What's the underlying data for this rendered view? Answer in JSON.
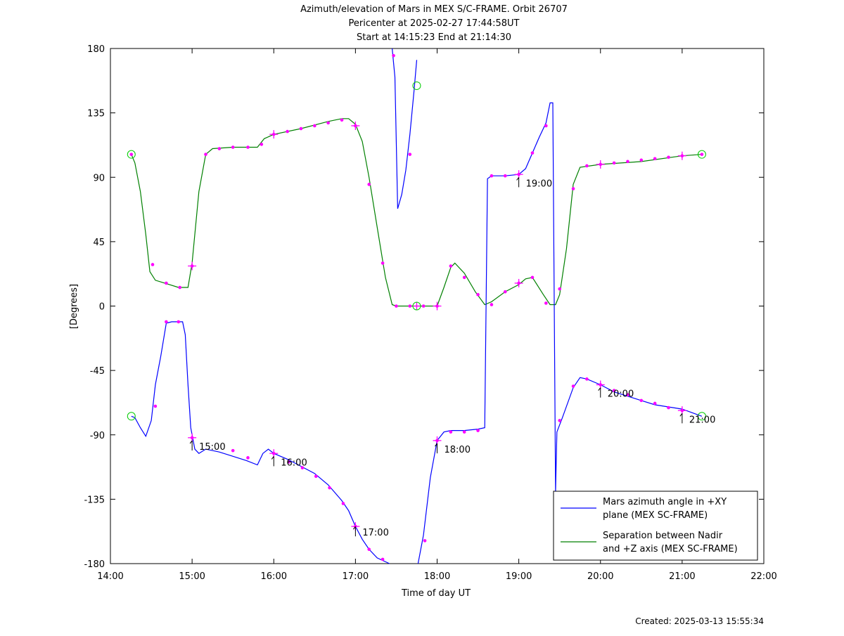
{
  "chart_data": {
    "type": "line",
    "title_lines": [
      "Azimuth/elevation of Mars in MEX S/C-FRAME.  Orbit 26707",
      "Pericenter at 2025-02-27 17:44:58UT",
      "Start at 14:15:23 End at 21:14:30"
    ],
    "xlabel": "Time of day UT",
    "ylabel": "[Degrees]",
    "footer": "Created: 2025-03-13 15:55:34",
    "xlim": [
      "14:00",
      "22:00"
    ],
    "ylim": [
      -180,
      180
    ],
    "x_ticks": [
      "14:00",
      "15:00",
      "16:00",
      "17:00",
      "18:00",
      "19:00",
      "20:00",
      "21:00",
      "22:00"
    ],
    "y_ticks": [
      180,
      135,
      90,
      45,
      0,
      -45,
      -90,
      -135,
      -180
    ],
    "grid": false,
    "legend_position": "bottom-right",
    "colors": {
      "azimuth": "#0000ff",
      "separation": "#008000",
      "marker": "#ff00ff",
      "endpoint": "#00cc00"
    },
    "series": [
      {
        "name": "Mars azimuth angle in +XY plane (MEX SC-FRAME)",
        "legend_lines": [
          "Mars azimuth angle in +XY",
          "plane (MEX SC-FRAME)"
        ],
        "color": "#0000ff",
        "points": [
          [
            "14:15:23",
            -77
          ],
          [
            "14:18",
            -78
          ],
          [
            "14:22",
            -85
          ],
          [
            "14:26",
            -91
          ],
          [
            "14:30",
            -80
          ],
          [
            "14:33",
            -55
          ],
          [
            "14:37",
            -35
          ],
          [
            "14:41",
            -12
          ],
          [
            "14:45",
            -11
          ],
          [
            "14:50",
            -11
          ],
          [
            "14:53",
            -11
          ],
          [
            "14:55",
            -20
          ],
          [
            "14:57",
            -55
          ],
          [
            "14:59",
            -85
          ],
          [
            "15:02",
            -100
          ],
          [
            "15:05",
            -103
          ],
          [
            "15:10",
            -100
          ],
          [
            "15:20",
            -102
          ],
          [
            "15:30",
            -105
          ],
          [
            "15:40",
            -108
          ],
          [
            "15:48",
            -111
          ],
          [
            "15:52",
            -103
          ],
          [
            "15:56",
            -100
          ],
          [
            "16:00",
            -103
          ],
          [
            "16:10",
            -107
          ],
          [
            "16:20",
            -112
          ],
          [
            "16:30",
            -117
          ],
          [
            "16:40",
            -125
          ],
          [
            "16:50",
            -136
          ],
          [
            "16:55",
            -143
          ],
          [
            "17:00",
            -154
          ],
          [
            "17:05",
            -163
          ],
          [
            "17:10",
            -170
          ],
          [
            "17:16",
            -176
          ],
          [
            "17:25",
            -180
          ],
          [
            null,
            null
          ],
          [
            "17:27",
            180
          ],
          [
            "17:29",
            160
          ],
          [
            "17:31",
            68
          ],
          [
            "17:34",
            78
          ],
          [
            "17:37",
            95
          ],
          [
            "17:40",
            120
          ],
          [
            "17:43",
            150
          ],
          [
            "17:45",
            172
          ],
          [
            null,
            null
          ],
          [
            "17:46",
            -180
          ],
          [
            "17:50",
            -160
          ],
          [
            "17:55",
            -120
          ],
          [
            "18:00",
            -94
          ],
          [
            "18:05",
            -88
          ],
          [
            "18:10",
            -87
          ],
          [
            "18:20",
            -87
          ],
          [
            "18:30",
            -86
          ],
          [
            "18:35",
            -85
          ],
          [
            "18:37",
            89
          ],
          [
            "18:40",
            91
          ],
          [
            "18:50",
            91
          ],
          [
            "19:00",
            92
          ],
          [
            "19:05",
            96
          ],
          [
            "19:10",
            107
          ],
          [
            "19:15",
            118
          ],
          [
            "19:20",
            128
          ],
          [
            "19:23",
            142
          ],
          [
            "19:25",
            142
          ],
          [
            "19:27",
            -130
          ],
          [
            "19:28",
            -88
          ],
          [
            "19:32",
            -78
          ],
          [
            "19:40",
            -57
          ],
          [
            "19:45",
            -50
          ],
          [
            "19:50",
            -51
          ],
          [
            "20:00",
            -55
          ],
          [
            "20:10",
            -60
          ],
          [
            "20:20",
            -63
          ],
          [
            "20:30",
            -66
          ],
          [
            "20:40",
            -69
          ],
          [
            "21:00",
            -72
          ],
          [
            "21:14:30",
            -77
          ]
        ],
        "markers": [
          [
            "14:33",
            -70
          ],
          [
            "14:41",
            -11
          ],
          [
            "14:50",
            -11
          ],
          [
            "15:00",
            -92
          ],
          [
            "15:30",
            -101
          ],
          [
            "15:41",
            -106
          ],
          [
            "16:00",
            -103
          ],
          [
            "16:11",
            -109
          ],
          [
            "16:21",
            -113
          ],
          [
            "16:31",
            -119
          ],
          [
            "16:41",
            -127
          ],
          [
            "16:51",
            -138
          ],
          [
            "17:00",
            -154
          ],
          [
            "17:10",
            -170
          ],
          [
            "17:20",
            -177
          ],
          [
            "17:28",
            175
          ],
          [
            "17:40",
            106
          ],
          [
            "17:51",
            -164
          ],
          [
            "18:00",
            -94
          ],
          [
            "18:10",
            -88
          ],
          [
            "18:20",
            -88
          ],
          [
            "18:30",
            -87
          ],
          [
            "18:40",
            91
          ],
          [
            "18:50",
            91
          ],
          [
            "19:00",
            92
          ],
          [
            "19:10",
            107
          ],
          [
            "19:20",
            126
          ],
          [
            "19:30",
            -80
          ],
          [
            "19:40",
            -56
          ],
          [
            "19:50",
            -51
          ],
          [
            "20:00",
            -55
          ],
          [
            "20:10",
            -59
          ],
          [
            "20:20",
            -62
          ],
          [
            "20:30",
            -66
          ],
          [
            "20:40",
            -68
          ],
          [
            "20:50",
            -71
          ],
          [
            "21:00",
            -73
          ]
        ]
      },
      {
        "name": "Separation between Nadir and +Z axis (MEX SC-FRAME)",
        "legend_lines": [
          "Separation between Nadir",
          "and +Z axis (MEX SC-FRAME)"
        ],
        "color": "#008000",
        "points": [
          [
            "14:15:23",
            106
          ],
          [
            "14:18",
            100
          ],
          [
            "14:22",
            80
          ],
          [
            "14:26",
            50
          ],
          [
            "14:29",
            24
          ],
          [
            "14:33",
            18
          ],
          [
            "14:40",
            16
          ],
          [
            "14:50",
            13
          ],
          [
            "14:57",
            13
          ],
          [
            "15:00",
            30
          ],
          [
            "15:05",
            80
          ],
          [
            "15:10",
            106
          ],
          [
            "15:15",
            110
          ],
          [
            "15:30",
            111
          ],
          [
            "15:40",
            111
          ],
          [
            "15:48",
            111
          ],
          [
            "15:53",
            117
          ],
          [
            "16:00",
            120
          ],
          [
            "16:20",
            124
          ],
          [
            "16:40",
            129
          ],
          [
            "16:50",
            131
          ],
          [
            "16:55",
            131
          ],
          [
            "17:00",
            127
          ],
          [
            "17:05",
            115
          ],
          [
            "17:10",
            90
          ],
          [
            "17:16",
            55
          ],
          [
            "17:22",
            20
          ],
          [
            "17:27",
            1
          ],
          [
            "17:30",
            0
          ],
          [
            "18:00",
            0
          ],
          [
            "18:05",
            13
          ],
          [
            "18:10",
            27
          ],
          [
            "18:13",
            30
          ],
          [
            "18:20",
            23
          ],
          [
            "18:28",
            10
          ],
          [
            "18:35",
            1
          ],
          [
            "18:40",
            3
          ],
          [
            "18:50",
            10
          ],
          [
            "19:00",
            15
          ],
          [
            "19:05",
            19
          ],
          [
            "19:10",
            20
          ],
          [
            "19:18",
            8
          ],
          [
            "19:23",
            1
          ],
          [
            "19:27",
            1
          ],
          [
            "19:30",
            8
          ],
          [
            "19:35",
            40
          ],
          [
            "19:40",
            85
          ],
          [
            "19:45",
            97
          ],
          [
            "20:00",
            99
          ],
          [
            "20:30",
            101
          ],
          [
            "21:00",
            105
          ],
          [
            "21:14:30",
            106
          ]
        ],
        "markers": [
          [
            "14:15:23",
            106
          ],
          [
            "14:31",
            29
          ],
          [
            "14:41",
            16
          ],
          [
            "14:51",
            13
          ],
          [
            "15:00",
            28
          ],
          [
            "15:10",
            106
          ],
          [
            "15:20",
            110
          ],
          [
            "15:30",
            111
          ],
          [
            "15:41",
            111
          ],
          [
            "15:51",
            113
          ],
          [
            "16:00",
            120
          ],
          [
            "16:10",
            122
          ],
          [
            "16:20",
            124
          ],
          [
            "16:30",
            126
          ],
          [
            "16:40",
            128
          ],
          [
            "16:50",
            130
          ],
          [
            "17:00",
            126
          ],
          [
            "17:10",
            85
          ],
          [
            "17:20",
            30
          ],
          [
            "17:30",
            0
          ],
          [
            "17:40",
            0
          ],
          [
            "17:50",
            0
          ],
          [
            "18:00",
            0
          ],
          [
            "18:10",
            28
          ],
          [
            "18:20",
            20
          ],
          [
            "18:30",
            8
          ],
          [
            "18:40",
            1
          ],
          [
            "18:50",
            10
          ],
          [
            "19:00",
            16
          ],
          [
            "19:10",
            20
          ],
          [
            "19:20",
            2
          ],
          [
            "19:30",
            12
          ],
          [
            "19:40",
            82
          ],
          [
            "19:50",
            98
          ],
          [
            "20:00",
            99
          ],
          [
            "20:10",
            100
          ],
          [
            "20:20",
            101
          ],
          [
            "20:30",
            102
          ],
          [
            "20:40",
            103
          ],
          [
            "20:50",
            104
          ],
          [
            "21:00",
            105
          ],
          [
            "21:14:30",
            106
          ]
        ]
      }
    ],
    "plus_markers": [
      [
        "15:00",
        28
      ],
      [
        "16:00",
        120
      ],
      [
        "17:00",
        126
      ],
      [
        "19:00",
        16
      ],
      [
        "20:00",
        99
      ],
      [
        "21:00",
        105
      ],
      [
        "15:00",
        -92
      ],
      [
        "16:00",
        -103
      ],
      [
        "17:00",
        -154
      ],
      [
        "18:00",
        -94
      ],
      [
        "19:00",
        92
      ],
      [
        "20:00",
        -55
      ],
      [
        "21:00",
        -73
      ],
      [
        "17:45",
        0
      ],
      [
        "18:00",
        0
      ]
    ],
    "endpoint_circles": [
      [
        "14:15:23",
        106
      ],
      [
        "14:15:23",
        -77
      ],
      [
        "21:14:30",
        106
      ],
      [
        "21:14:30",
        -77
      ],
      [
        "17:45",
        154
      ],
      [
        "17:45",
        0
      ]
    ],
    "time_annotations": [
      {
        "label": "15:00",
        "at": [
          "15:00",
          -98
        ]
      },
      {
        "label": "16:00",
        "at": [
          "16:00",
          -109
        ]
      },
      {
        "label": "17:00",
        "at": [
          "17:00",
          -158
        ]
      },
      {
        "label": "18:00",
        "at": [
          "18:00",
          -100
        ]
      },
      {
        "label": "19:00",
        "at": [
          "19:00",
          86
        ]
      },
      {
        "label": "20:00",
        "at": [
          "20:00",
          -61
        ]
      },
      {
        "label": "21:00",
        "at": [
          "21:00",
          -79
        ]
      }
    ]
  }
}
